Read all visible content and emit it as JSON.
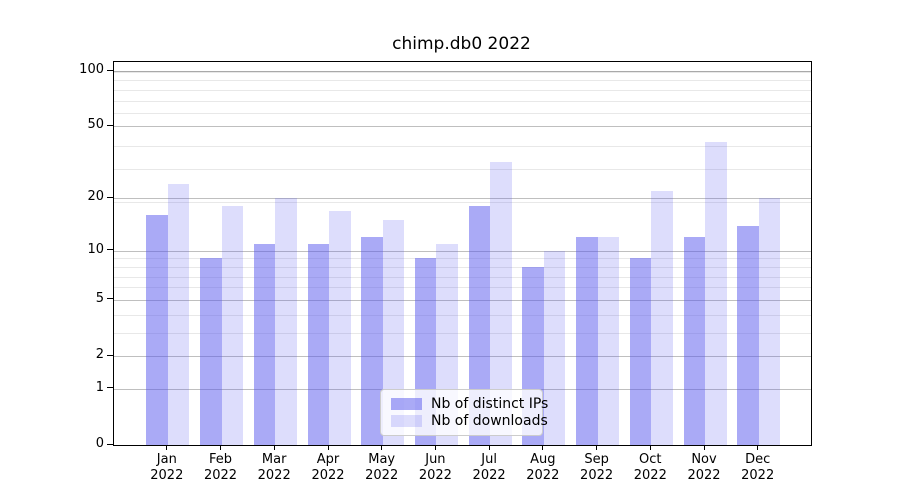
{
  "title": "chimp.db0 2022",
  "y_axis": {
    "tick_labels": [
      "0",
      "1",
      "2",
      "5",
      "10",
      "20",
      "50",
      "100"
    ]
  },
  "legend": {
    "items": [
      {
        "label": "Nb of distinct IPs",
        "series": "ips"
      },
      {
        "label": "Nb of downloads",
        "series": "downloads"
      }
    ]
  },
  "colors": {
    "bar_base": "#5555ee",
    "ips_alpha": 0.5,
    "downloads_alpha": 0.2,
    "grid_major": "#bfbfbf",
    "grid_top_major": "#a9a9a9",
    "grid_minor": "#e8e8e8",
    "spine": "#000000"
  },
  "chart_data": {
    "type": "bar",
    "title": "chimp.db0 2022",
    "categories": [
      "Jan 2022",
      "Feb 2022",
      "Mar 2022",
      "Apr 2022",
      "May 2022",
      "Jun 2022",
      "Jul 2022",
      "Aug 2022",
      "Sep 2022",
      "Oct 2022",
      "Nov 2022",
      "Dec 2022"
    ],
    "series": [
      {
        "name": "Nb of distinct IPs",
        "values": [
          16,
          9,
          11,
          11,
          12,
          9,
          18,
          8,
          12,
          9,
          12,
          14
        ]
      },
      {
        "name": "Nb of downloads",
        "values": [
          24,
          18,
          20,
          17,
          15,
          11,
          32,
          10,
          12,
          22,
          41,
          20
        ]
      }
    ],
    "yscale": "log1p",
    "yticks": [
      0,
      1,
      2,
      5,
      10,
      20,
      50,
      100
    ],
    "minor_grid_u": [
      4,
      5,
      7,
      8,
      9,
      10,
      20,
      30,
      40,
      60,
      70,
      80,
      90,
      100
    ],
    "ylim": [
      0,
      113
    ],
    "grid": true,
    "legend_position": "lower center"
  }
}
